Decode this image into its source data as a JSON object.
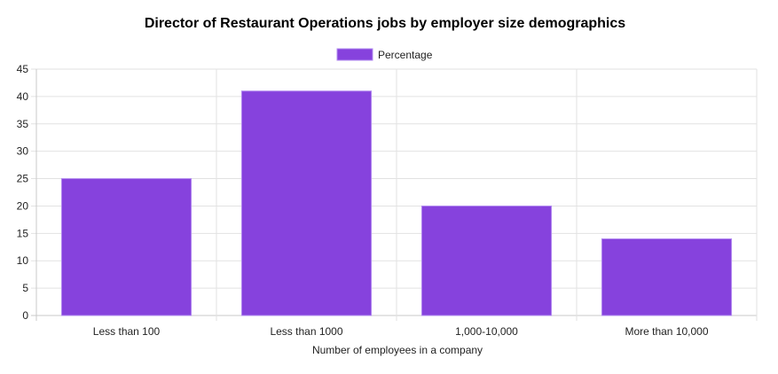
{
  "chart_data": {
    "type": "bar",
    "title": "Director of Restaurant Operations jobs by employer size demographics",
    "categories": [
      "Less than 100",
      "Less than 1000",
      "1,000-10,000",
      "More than 10,000"
    ],
    "series": [
      {
        "name": "Percentage",
        "values": [
          25,
          41,
          20,
          14
        ],
        "color": "#8642dd",
        "border_color": "#b38cf0"
      }
    ],
    "xlabel": "Number of employees in a company",
    "ylabel": "",
    "ylim": [
      0,
      45
    ],
    "yticks": [
      0,
      5,
      10,
      15,
      20,
      25,
      30,
      35,
      40,
      45
    ],
    "grid": true,
    "legend_position": "top"
  }
}
